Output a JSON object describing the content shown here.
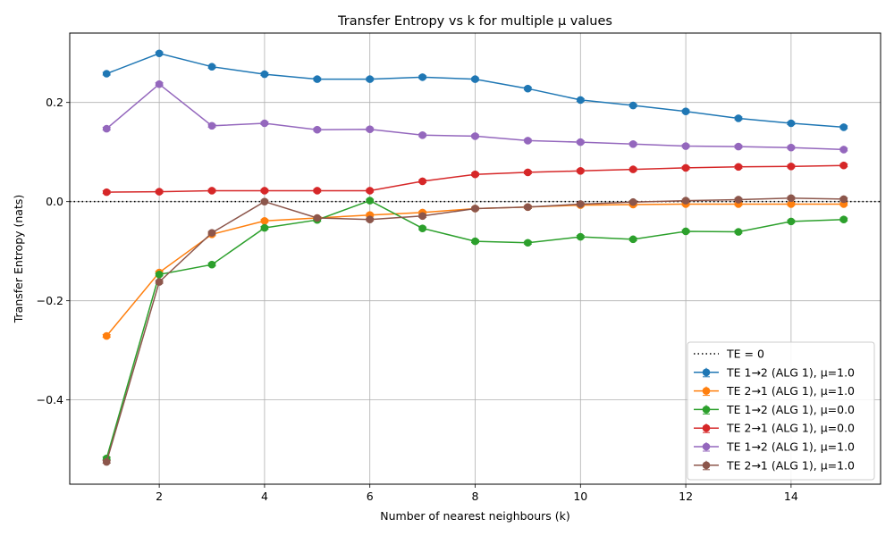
{
  "chart_data": {
    "type": "line",
    "title": "Transfer Entropy vs k for multiple μ values",
    "xlabel": "Number of nearest neighbours (k)",
    "ylabel": "Transfer Entropy (nats)",
    "xlim": [
      0.3,
      15.7
    ],
    "ylim": [
      -0.57,
      0.34
    ],
    "xticks": [
      2,
      4,
      6,
      8,
      10,
      12,
      14
    ],
    "yticks": [
      -0.4,
      -0.2,
      0.0,
      0.2
    ],
    "ytick_labels": [
      "−0.4",
      "−0.2",
      "0.0",
      "0.2"
    ],
    "grid": true,
    "legend_position": "lower-right",
    "reference_line": {
      "y": 0,
      "label": "TE = 0",
      "style": "dotted",
      "color": "#000000"
    },
    "x": [
      1,
      2,
      3,
      4,
      5,
      6,
      7,
      8,
      9,
      10,
      11,
      12,
      13,
      14,
      15
    ],
    "series": [
      {
        "name": "TE 1→2 (ALG 1), μ=1.0",
        "color": "#1f77b4",
        "values": [
          0.258,
          0.299,
          0.272,
          0.257,
          0.247,
          0.247,
          0.251,
          0.247,
          0.228,
          0.205,
          0.194,
          0.182,
          0.168,
          0.158,
          0.15
        ]
      },
      {
        "name": "TE 2→1 (ALG 1), μ=1.0",
        "color": "#ff7f0e",
        "values": [
          -0.271,
          -0.143,
          -0.066,
          -0.039,
          -0.033,
          -0.027,
          -0.022,
          -0.014,
          -0.011,
          -0.007,
          -0.006,
          -0.005,
          -0.005,
          -0.005,
          -0.005
        ]
      },
      {
        "name": "TE 1→2 (ALG 1), μ=0.0",
        "color": "#2ca02c",
        "values": [
          -0.518,
          -0.147,
          -0.127,
          -0.053,
          -0.037,
          0.002,
          -0.054,
          -0.08,
          -0.083,
          -0.071,
          -0.076,
          -0.06,
          -0.061,
          -0.04,
          -0.036
        ]
      },
      {
        "name": "TE 2→1 (ALG 1), μ=0.0",
        "color": "#d62728",
        "values": [
          0.019,
          0.02,
          0.022,
          0.022,
          0.022,
          0.022,
          0.041,
          0.055,
          0.059,
          0.062,
          0.065,
          0.068,
          0.07,
          0.071,
          0.073
        ]
      },
      {
        "name": "TE 1→2 (ALG 1), μ=1.0",
        "color": "#9467bd",
        "values": [
          0.147,
          0.237,
          0.153,
          0.158,
          0.145,
          0.146,
          0.134,
          0.132,
          0.123,
          0.12,
          0.116,
          0.112,
          0.111,
          0.109,
          0.105
        ]
      },
      {
        "name": "TE 2→1 (ALG 1), μ=1.0",
        "color": "#8c564b",
        "values": [
          -0.525,
          -0.162,
          -0.063,
          0.0,
          -0.033,
          -0.036,
          -0.029,
          -0.014,
          -0.011,
          -0.005,
          -0.001,
          0.002,
          0.004,
          0.007,
          0.005
        ]
      }
    ]
  }
}
